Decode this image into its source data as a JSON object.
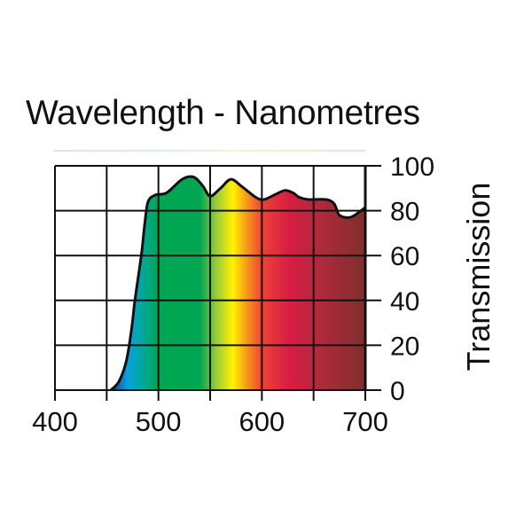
{
  "chart_data": {
    "type": "area",
    "title": "Wavelength - Nanometres",
    "xlabel": "Wavelength - Nanometres",
    "ylabel": "Transmission",
    "xlim": [
      400,
      700
    ],
    "ylim": [
      0,
      100
    ],
    "grid": true,
    "x_ticks": [
      "400",
      "500",
      "600",
      "700"
    ],
    "y_ticks": [
      "100",
      "80",
      "60",
      "40",
      "20",
      "0"
    ],
    "x_gridlines": [
      400,
      450,
      500,
      550,
      600,
      650,
      700
    ],
    "y_gridlines": [
      0,
      20,
      40,
      60,
      80,
      100
    ],
    "y_axis_side": "right",
    "series": [
      {
        "name": "Transmission",
        "x": [
          454,
          462,
          469,
          474,
          477,
          481,
          484,
          487,
          490,
          497,
          508,
          523,
          534,
          543,
          550,
          560,
          570,
          580,
          594,
          602,
          612,
          622,
          630,
          636,
          645,
          662,
          670,
          675,
          685,
          693,
          700
        ],
        "y": [
          0,
          4,
          13,
          27,
          39,
          52,
          62,
          75,
          84,
          87,
          88,
          94,
          95,
          91,
          86.5,
          90,
          94,
          91,
          86,
          85,
          87,
          89,
          88,
          86,
          85,
          85,
          83,
          78,
          77,
          79,
          81.5
        ]
      }
    ],
    "spectrum_colors": [
      {
        "nm": 455,
        "color": "#1b3d8f"
      },
      {
        "nm": 470,
        "color": "#0aa0e0"
      },
      {
        "nm": 484,
        "color": "#00a99d"
      },
      {
        "nm": 500,
        "color": "#00a651"
      },
      {
        "nm": 540,
        "color": "#00a651"
      },
      {
        "nm": 556,
        "color": "#9bcb3b"
      },
      {
        "nm": 572,
        "color": "#fff200"
      },
      {
        "nm": 586,
        "color": "#f7941d"
      },
      {
        "nm": 600,
        "color": "#ef4136"
      },
      {
        "nm": 628,
        "color": "#d51d43"
      },
      {
        "nm": 650,
        "color": "#b8283d"
      },
      {
        "nm": 700,
        "color": "#7e2f2c"
      }
    ]
  }
}
